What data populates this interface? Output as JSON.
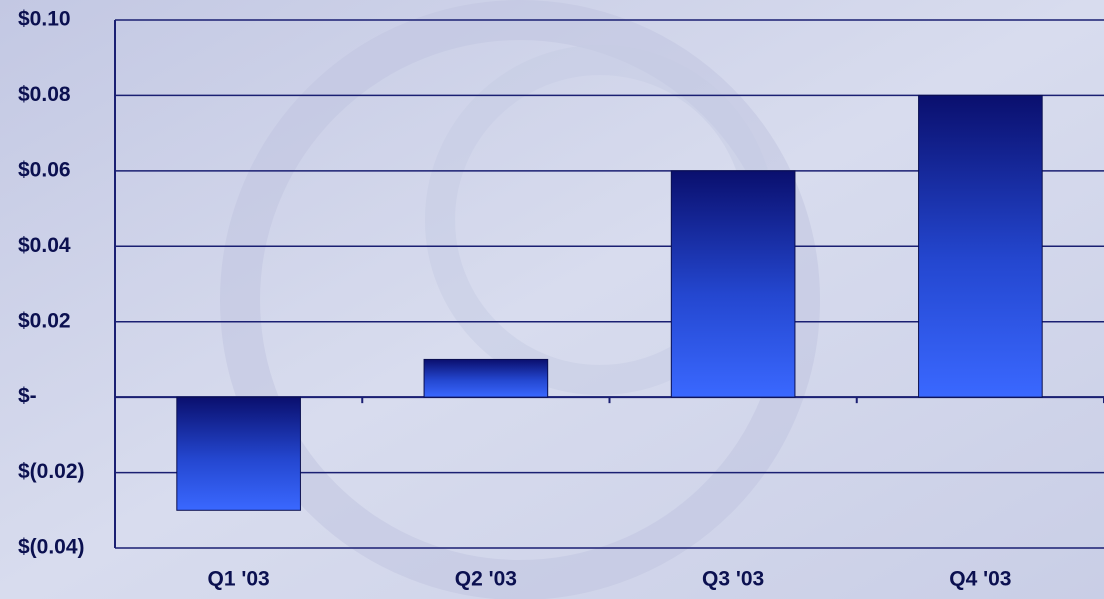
{
  "chart_data": {
    "type": "bar",
    "categories": [
      "Q1 '03",
      "Q2 '03",
      "Q3 '03",
      "Q4 '03"
    ],
    "values": [
      -0.03,
      0.01,
      0.06,
      0.08
    ],
    "ylim": [
      -0.04,
      0.1
    ],
    "yticks": [
      {
        "value": -0.04,
        "label": "$(0.04)"
      },
      {
        "value": -0.02,
        "label": "$(0.02)"
      },
      {
        "value": 0,
        "label": "$-"
      },
      {
        "value": 0.02,
        "label": "$0.02"
      },
      {
        "value": 0.04,
        "label": "$0.04"
      },
      {
        "value": 0.06,
        "label": "$0.06"
      },
      {
        "value": 0.08,
        "label": "$0.08"
      },
      {
        "value": 0.1,
        "label": "$0.10"
      }
    ],
    "grid": true
  }
}
